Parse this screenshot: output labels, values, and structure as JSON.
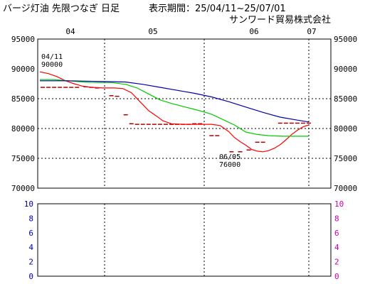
{
  "header": {
    "title": "バージ灯油 先限つなぎ 日足",
    "period_label": "表示期間：25/04/11~25/07/01",
    "company": "サンワード貿易株式会社"
  },
  "colors": {
    "frame": "#000000",
    "grid": "#000000",
    "price_line": "#ff0000",
    "ma_short": "#00cc00",
    "ma_long": "#0000aa",
    "price_marks": "#aa0000",
    "left_axis_lower": "#0000aa",
    "right_axis_lower": "#cc00aa"
  },
  "chart_data": [
    {
      "type": "line",
      "x_ticks": [
        "04",
        "05",
        "06",
        "07"
      ],
      "ylim": [
        70000,
        95000
      ],
      "y_ticks": [
        "95000",
        "90000",
        "85000",
        "80000",
        "75000",
        "70000"
      ],
      "grid": "dotted",
      "series": [
        {
          "color": "#ff0000",
          "values": [
            [
              0,
              89500
            ],
            [
              3,
              89200
            ],
            [
              6,
              88700
            ],
            [
              9,
              88000
            ],
            [
              12,
              87500
            ],
            [
              15,
              87100
            ],
            [
              18,
              86900
            ],
            [
              22,
              86800
            ],
            [
              26,
              86800
            ],
            [
              29,
              86700
            ],
            [
              32,
              86000
            ],
            [
              35,
              84500
            ],
            [
              38,
              83000
            ],
            [
              41,
              82000
            ],
            [
              43,
              81300
            ],
            [
              46,
              80800
            ],
            [
              50,
              80700
            ],
            [
              55,
              80700
            ],
            [
              60,
              80700
            ],
            [
              63,
              80500
            ],
            [
              66,
              79500
            ],
            [
              68,
              78500
            ],
            [
              70,
              77800
            ],
            [
              72,
              77200
            ],
            [
              74,
              76500
            ],
            [
              76,
              76200
            ],
            [
              78,
              76100
            ],
            [
              80,
              76300
            ],
            [
              82,
              76700
            ],
            [
              84,
              77300
            ],
            [
              86,
              78100
            ],
            [
              88,
              79000
            ],
            [
              90,
              79700
            ],
            [
              92,
              80300
            ],
            [
              94,
              80600
            ]
          ]
        },
        {
          "color": "#00cc00",
          "values": [
            [
              0,
              88200
            ],
            [
              5,
              88200
            ],
            [
              10,
              88000
            ],
            [
              15,
              87800
            ],
            [
              20,
              87700
            ],
            [
              25,
              87700
            ],
            [
              30,
              87400
            ],
            [
              34,
              86800
            ],
            [
              38,
              85800
            ],
            [
              42,
              84800
            ],
            [
              46,
              84200
            ],
            [
              50,
              83700
            ],
            [
              55,
              83100
            ],
            [
              60,
              82400
            ],
            [
              64,
              81500
            ],
            [
              68,
              80600
            ],
            [
              72,
              79400
            ],
            [
              76,
              79000
            ],
            [
              80,
              78800
            ],
            [
              85,
              78700
            ],
            [
              90,
              78700
            ],
            [
              94,
              78700
            ]
          ]
        },
        {
          "color": "#0000aa",
          "values": [
            [
              0,
              88000
            ],
            [
              10,
              88000
            ],
            [
              20,
              87900
            ],
            [
              30,
              87800
            ],
            [
              36,
              87400
            ],
            [
              42,
              86900
            ],
            [
              48,
              86400
            ],
            [
              54,
              85900
            ],
            [
              60,
              85300
            ],
            [
              66,
              84500
            ],
            [
              72,
              83600
            ],
            [
              78,
              82700
            ],
            [
              84,
              81900
            ],
            [
              90,
              81400
            ],
            [
              94,
              81100
            ]
          ]
        }
      ],
      "price_marks": [
        [
          1,
          86900
        ],
        [
          3,
          86900
        ],
        [
          5,
          86900
        ],
        [
          7,
          86900
        ],
        [
          9,
          86900
        ],
        [
          11,
          86900
        ],
        [
          13,
          86900
        ],
        [
          16,
          87000
        ],
        [
          18,
          86900
        ],
        [
          20,
          86800
        ],
        [
          25,
          85500
        ],
        [
          27,
          85400
        ],
        [
          30,
          82300
        ],
        [
          32,
          80800
        ],
        [
          34,
          80700
        ],
        [
          36,
          80700
        ],
        [
          38,
          80700
        ],
        [
          40,
          80700
        ],
        [
          42,
          80700
        ],
        [
          44,
          80700
        ],
        [
          46,
          80700
        ],
        [
          48,
          80700
        ],
        [
          50,
          80700
        ],
        [
          52,
          80700
        ],
        [
          54,
          80800
        ],
        [
          56,
          80800
        ],
        [
          60,
          78800
        ],
        [
          62,
          78800
        ],
        [
          67,
          76100
        ],
        [
          70,
          76100
        ],
        [
          73,
          76400
        ],
        [
          76,
          77700
        ],
        [
          78,
          77700
        ],
        [
          84,
          80900
        ],
        [
          86,
          80900
        ],
        [
          88,
          80900
        ],
        [
          90,
          80900
        ],
        [
          92,
          80900
        ],
        [
          94,
          80900
        ]
      ],
      "annotations": [
        {
          "date": "04/11",
          "value": "90000"
        },
        {
          "date": "06/05",
          "value": "76000"
        }
      ]
    },
    {
      "type": "line",
      "ylim": [
        0,
        10
      ],
      "y_ticks": [
        "10",
        "8",
        "6",
        "4",
        "2",
        "0"
      ],
      "series": []
    }
  ]
}
